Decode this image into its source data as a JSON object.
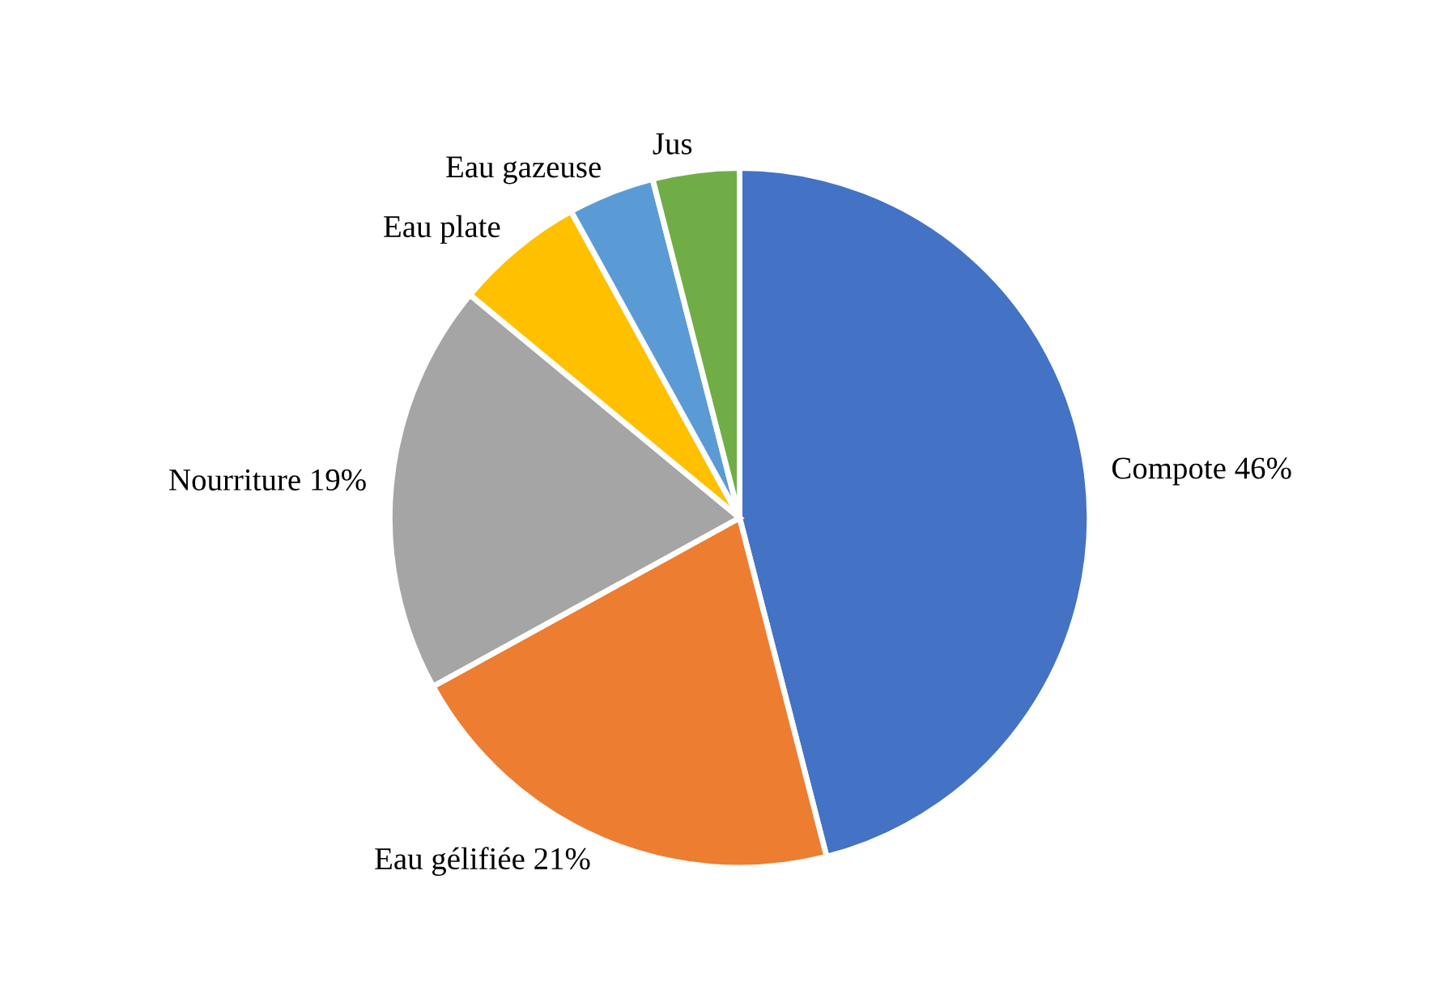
{
  "chart_data": {
    "type": "pie",
    "categories": [
      "Compote",
      "Eau gélifiée",
      "Nourriture",
      "Eau plate",
      "Eau gazeuse",
      "Jus"
    ],
    "values": [
      46,
      21,
      19,
      6,
      4,
      4
    ],
    "value_labels": [
      "46%",
      "21%",
      "19%",
      null,
      null,
      null
    ],
    "colors": [
      "#4472c4",
      "#ed7d31",
      "#a5a5a5",
      "#ffc000",
      "#5b9bd5",
      "#70ad47"
    ],
    "legend": false
  }
}
